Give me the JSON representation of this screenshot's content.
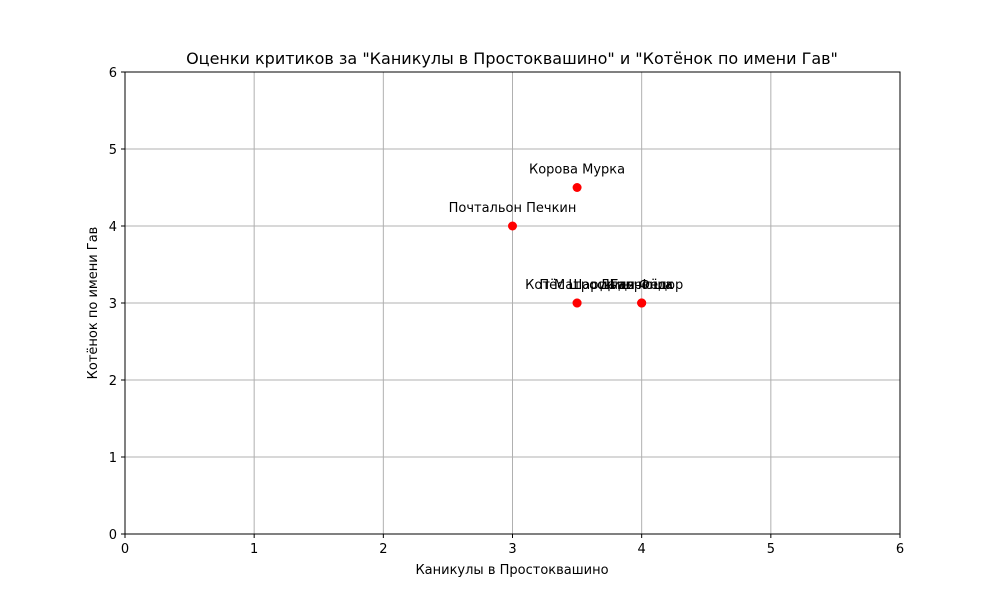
{
  "chart_data": {
    "type": "scatter",
    "title": "Оценки критиков за \"Каникулы в Простоквашино\" и \"Котёнок по имени Гав\"",
    "xlabel": "Каникулы в Простоквашино",
    "ylabel": "Котёнок по имени Гав",
    "xlim": [
      0,
      6
    ],
    "ylim": [
      0,
      6
    ],
    "xticks": [
      "0",
      "1",
      "2",
      "3",
      "4",
      "5",
      "6"
    ],
    "yticks": [
      "0",
      "1",
      "2",
      "3",
      "4",
      "5",
      "6"
    ],
    "grid": true,
    "point_color": "#ff0000",
    "points": [
      {
        "label": "Корова Мурка",
        "x": 3.5,
        "y": 4.5
      },
      {
        "label": "Почтальон Печкин",
        "x": 3.0,
        "y": 4.0
      },
      {
        "label": "Кот Матроскин",
        "x": 3.5,
        "y": 3.0
      },
      {
        "label": "Пёс Шарик",
        "x": 3.5,
        "y": 3.0
      },
      {
        "label": "Дядя Фёдор",
        "x": 4.0,
        "y": 3.0
      },
      {
        "label": "Галчонок",
        "x": 4.0,
        "y": 3.0
      },
      {
        "label": "Гаврюша",
        "x": 4.0,
        "y": 3.0
      }
    ]
  }
}
